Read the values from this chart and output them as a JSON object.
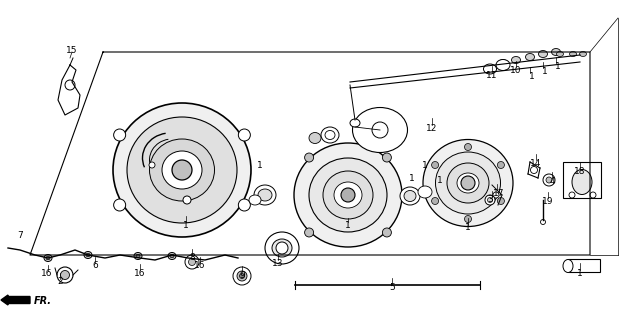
{
  "bg_color": "#ffffff",
  "line_color": "#000000",
  "fig_width": 6.26,
  "fig_height": 3.2,
  "dpi": 100
}
